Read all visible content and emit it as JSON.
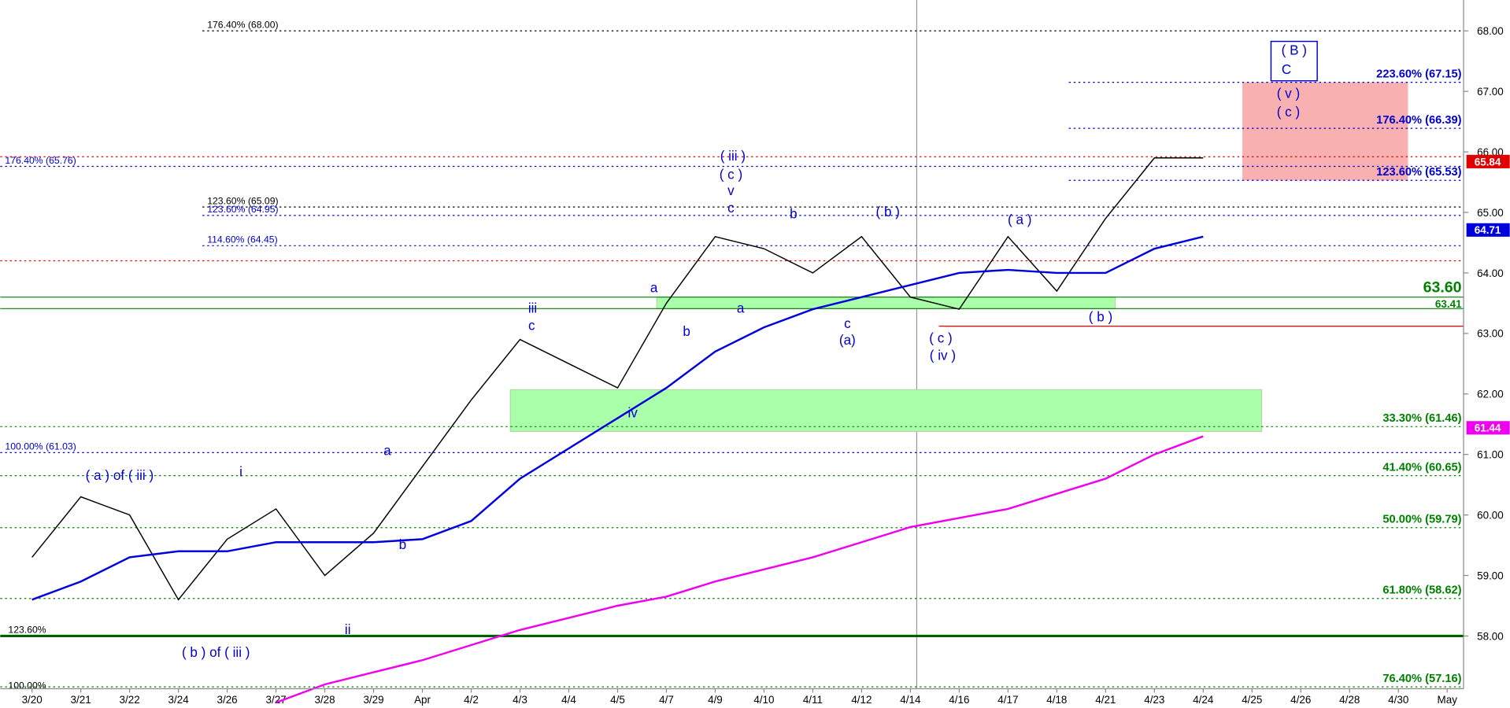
{
  "chart_data": {
    "type": "line",
    "categories": [
      "3/20",
      "3/21",
      "3/22",
      "3/24",
      "3/26",
      "3/27",
      "3/28",
      "3/29",
      "Apr",
      "4/2",
      "4/3",
      "4/4",
      "4/5",
      "4/7",
      "4/9",
      "4/10",
      "4/11",
      "4/12",
      "4/14",
      "4/16",
      "4/17",
      "4/18",
      "4/21",
      "4/23",
      "4/24",
      "4/25",
      "4/26",
      "4/28",
      "4/30",
      "May"
    ],
    "series": [
      {
        "color": "#000000",
        "values": [
          59.3,
          60.3,
          60.0,
          58.6,
          59.6,
          60.1,
          59.0,
          59.7,
          60.8,
          61.9,
          62.9,
          62.5,
          62.1,
          63.5,
          64.6,
          64.4,
          64.0,
          64.6,
          63.6,
          63.4,
          64.6,
          63.7,
          64.9,
          65.9,
          65.9,
          null,
          null,
          null,
          null,
          null
        ]
      },
      {
        "color": "#0000dd",
        "values": [
          58.6,
          58.9,
          59.3,
          59.4,
          59.4,
          59.55,
          59.55,
          59.55,
          59.6,
          59.9,
          60.6,
          61.1,
          61.6,
          62.1,
          62.7,
          63.1,
          63.4,
          63.6,
          63.8,
          64.0,
          64.05,
          64.0,
          64.0,
          64.4,
          64.6,
          null,
          null,
          null,
          null,
          null
        ]
      },
      {
        "color": "#ee00ee",
        "values": [
          null,
          null,
          null,
          null,
          null,
          56.9,
          57.2,
          57.4,
          57.6,
          57.85,
          58.1,
          58.3,
          58.5,
          58.65,
          58.9,
          59.1,
          59.3,
          59.55,
          59.8,
          59.95,
          60.1,
          60.35,
          60.6,
          61.0,
          61.3,
          null,
          null,
          null,
          null,
          null
        ]
      }
    ],
    "ylim": [
      56.81,
      68.51
    ],
    "yticks": [
      {
        "value": 58,
        "label": "58.00"
      },
      {
        "value": 59,
        "label": "59.00"
      },
      {
        "value": 60,
        "label": "60.00"
      },
      {
        "value": 61,
        "label": "61.00"
      },
      {
        "value": 62,
        "label": "62.00"
      },
      {
        "value": 63,
        "label": "63.00"
      },
      {
        "value": 64,
        "label": "64.00"
      },
      {
        "value": 65,
        "label": "65.00"
      },
      {
        "value": 66,
        "label": "66.00"
      },
      {
        "value": 67,
        "label": "67.00"
      },
      {
        "value": 68,
        "label": "68.00"
      }
    ],
    "left_levels": [
      {
        "label": "176.40% (68.00)",
        "value": 68.0,
        "color": "#000000"
      },
      {
        "label": "176.40% (65.76)",
        "value": 65.76,
        "color": "#0000cc"
      },
      {
        "label": "123.60% (65.09)",
        "value": 65.09,
        "color": "#000000"
      },
      {
        "label": "123.60% (64.95)",
        "value": 64.95,
        "color": "#0000cc"
      },
      {
        "label": "114.60% (64.45)",
        "value": 64.45,
        "color": "#0000cc"
      },
      {
        "label": "100.00% (61.03)",
        "value": 61.03,
        "color": "#0000cc"
      }
    ],
    "right_levels": [
      {
        "label": "223.60% (67.15)",
        "value": 67.15,
        "color": "#0000cc"
      },
      {
        "label": "176.40% (66.39)",
        "value": 66.39,
        "color": "#0000cc"
      },
      {
        "label": "123.60% (65.53)",
        "value": 65.53,
        "color": "#0000cc"
      },
      {
        "label": "33.30% (61.46)",
        "value": 61.46,
        "color": "#008000"
      },
      {
        "label": "41.40% (60.65)",
        "value": 60.65,
        "color": "#008000"
      },
      {
        "label": "50.00% (59.79)",
        "value": 59.79,
        "color": "#008000"
      },
      {
        "label": "61.80% (58.62)",
        "value": 58.62,
        "color": "#008000"
      },
      {
        "label": "76.40% (57.16)",
        "value": 57.16,
        "color": "#008000"
      }
    ],
    "support_levels": [
      {
        "label": "63.60",
        "value": 63.6,
        "color": "#008000"
      },
      {
        "label": "63.41",
        "value": 63.41,
        "color": "#008000"
      }
    ],
    "red_levels": [
      65.92,
      64.2,
      63.12
    ],
    "base_level": 58.0,
    "zones": [
      {
        "from": "4/7",
        "to": "4/21",
        "low": 63.41,
        "high": 63.6,
        "color": "#aaffaa"
      },
      {
        "from": "4/3",
        "to": "4/25",
        "low": 61.38,
        "high": 62.07,
        "color": "#aaffaa"
      },
      {
        "from": "4/25",
        "to": "4/30",
        "low": 65.53,
        "high": 67.15,
        "color": "#f8b0b0"
      }
    ],
    "price_tags": [
      {
        "value": 65.84,
        "color": "#e00000"
      },
      {
        "value": 64.71,
        "color": "#0000dd"
      },
      {
        "value": 61.44,
        "color": "#ee00ee"
      }
    ],
    "annotations": [
      "( a ) of ( iii )",
      "( b ) of ( iii )",
      "i",
      "ii",
      "a",
      "b",
      "iii",
      "c",
      "iv",
      "a",
      "b",
      "a",
      "( iii )",
      "( c )",
      "v",
      "c",
      "b",
      "c",
      "(a)",
      "( b )",
      "( c )",
      "( iv )",
      "( a )",
      "( b )",
      "( B )",
      "C",
      "( v )",
      "( c )",
      "123.60%",
      "100.00%"
    ]
  }
}
